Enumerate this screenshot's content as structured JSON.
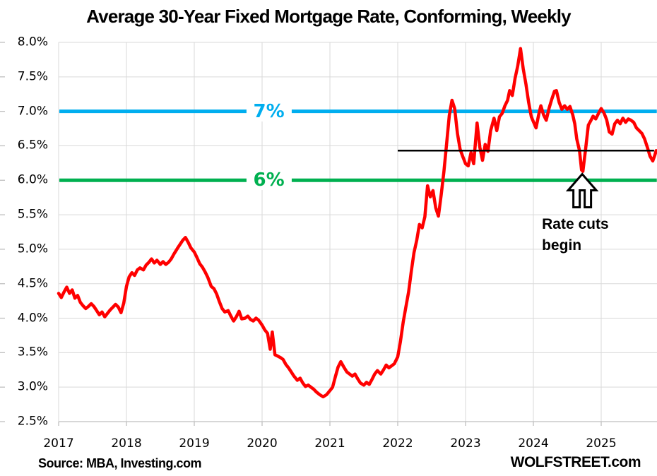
{
  "title": "Average 30-Year Fixed Mortgage Rate, Conforming, Weekly",
  "footer": {
    "source": "Source: MBA, Investing.com",
    "brand": "WOLFSTREET.com"
  },
  "colors": {
    "series_red": "#FF0000",
    "ref_blue": "#00AEEF",
    "ref_green": "#00B050",
    "ref_black": "#000000",
    "grid": "#D9D9D9",
    "axis": "#BFBFBF",
    "text": "#000000"
  },
  "chart_data": {
    "type": "line",
    "title": "Average 30-Year Fixed Mortgage Rate, Conforming, Weekly",
    "xlabel": "",
    "ylabel": "",
    "grid": true,
    "ylim": [
      2.5,
      8.0
    ],
    "xlim": [
      2017.0,
      2025.82
    ],
    "y_ticks": [
      {
        "label": "8.0%",
        "value": 8.0
      },
      {
        "label": "7.5%",
        "value": 7.5
      },
      {
        "label": "7.0%",
        "value": 7.0
      },
      {
        "label": "6.5%",
        "value": 6.5
      },
      {
        "label": "6.0%",
        "value": 6.0
      },
      {
        "label": "5.5%",
        "value": 5.5
      },
      {
        "label": "5.0%",
        "value": 5.0
      },
      {
        "label": "4.5%",
        "value": 4.5
      },
      {
        "label": "4.0%",
        "value": 4.0
      },
      {
        "label": "3.5%",
        "value": 3.5
      },
      {
        "label": "3.0%",
        "value": 3.0
      },
      {
        "label": "2.5%",
        "value": 2.5
      }
    ],
    "x_ticks": [
      {
        "label": "2017",
        "value": 2017
      },
      {
        "label": "2018",
        "value": 2018
      },
      {
        "label": "2019",
        "value": 2019
      },
      {
        "label": "2020",
        "value": 2020
      },
      {
        "label": "2021",
        "value": 2021
      },
      {
        "label": "2022",
        "value": 2022
      },
      {
        "label": "2023",
        "value": 2023
      },
      {
        "label": "2024",
        "value": 2024
      },
      {
        "label": "2025",
        "value": 2025
      }
    ],
    "reference_lines": [
      {
        "label": "7%",
        "value": 7.0,
        "color": "#00AEEF",
        "x_start": 2017.0,
        "x_end": 2025.82,
        "label_x": 2020.1,
        "width": 5
      },
      {
        "label": "6%",
        "value": 6.0,
        "color": "#00B050",
        "x_start": 2017.0,
        "x_end": 2025.82,
        "label_x": 2020.1,
        "width": 5
      },
      {
        "label": "",
        "value": 6.43,
        "color": "#000000",
        "x_start": 2022.0,
        "x_end": 2025.78,
        "label_x": null,
        "width": 2.5
      }
    ],
    "annotation": {
      "text": "Rate cuts begin",
      "arrow_x": 2024.72,
      "arrow_y": 6.1
    },
    "series": [
      {
        "name": "30-year fixed mortgage rate",
        "color": "#FF0000",
        "points": [
          [
            2017.0,
            4.36
          ],
          [
            2017.04,
            4.3
          ],
          [
            2017.08,
            4.38
          ],
          [
            2017.12,
            4.45
          ],
          [
            2017.16,
            4.36
          ],
          [
            2017.2,
            4.41
          ],
          [
            2017.24,
            4.29
          ],
          [
            2017.28,
            4.33
          ],
          [
            2017.32,
            4.23
          ],
          [
            2017.36,
            4.18
          ],
          [
            2017.4,
            4.14
          ],
          [
            2017.44,
            4.17
          ],
          [
            2017.48,
            4.21
          ],
          [
            2017.52,
            4.17
          ],
          [
            2017.56,
            4.11
          ],
          [
            2017.6,
            4.05
          ],
          [
            2017.64,
            4.09
          ],
          [
            2017.68,
            4.02
          ],
          [
            2017.72,
            4.07
          ],
          [
            2017.76,
            4.12
          ],
          [
            2017.8,
            4.16
          ],
          [
            2017.84,
            4.2
          ],
          [
            2017.88,
            4.16
          ],
          [
            2017.92,
            4.08
          ],
          [
            2017.96,
            4.22
          ],
          [
            2018.0,
            4.46
          ],
          [
            2018.04,
            4.6
          ],
          [
            2018.08,
            4.66
          ],
          [
            2018.12,
            4.62
          ],
          [
            2018.16,
            4.7
          ],
          [
            2018.2,
            4.73
          ],
          [
            2018.25,
            4.7
          ],
          [
            2018.29,
            4.77
          ],
          [
            2018.33,
            4.81
          ],
          [
            2018.37,
            4.86
          ],
          [
            2018.41,
            4.8
          ],
          [
            2018.45,
            4.84
          ],
          [
            2018.5,
            4.78
          ],
          [
            2018.54,
            4.82
          ],
          [
            2018.58,
            4.78
          ],
          [
            2018.62,
            4.81
          ],
          [
            2018.66,
            4.86
          ],
          [
            2018.7,
            4.93
          ],
          [
            2018.75,
            5.01
          ],
          [
            2018.79,
            5.07
          ],
          [
            2018.83,
            5.13
          ],
          [
            2018.87,
            5.17
          ],
          [
            2018.91,
            5.1
          ],
          [
            2018.95,
            5.02
          ],
          [
            2019.0,
            4.96
          ],
          [
            2019.04,
            4.88
          ],
          [
            2019.08,
            4.79
          ],
          [
            2019.12,
            4.74
          ],
          [
            2019.16,
            4.67
          ],
          [
            2019.2,
            4.59
          ],
          [
            2019.25,
            4.46
          ],
          [
            2019.29,
            4.43
          ],
          [
            2019.33,
            4.35
          ],
          [
            2019.37,
            4.24
          ],
          [
            2019.41,
            4.14
          ],
          [
            2019.45,
            4.09
          ],
          [
            2019.5,
            4.11
          ],
          [
            2019.54,
            4.03
          ],
          [
            2019.58,
            3.96
          ],
          [
            2019.62,
            4.02
          ],
          [
            2019.66,
            4.1
          ],
          [
            2019.7,
            3.99
          ],
          [
            2019.75,
            4.0
          ],
          [
            2019.79,
            4.03
          ],
          [
            2019.83,
            3.98
          ],
          [
            2019.87,
            3.96
          ],
          [
            2019.91,
            4.0
          ],
          [
            2019.95,
            3.97
          ],
          [
            2020.0,
            3.9
          ],
          [
            2020.04,
            3.83
          ],
          [
            2020.08,
            3.78
          ],
          [
            2020.12,
            3.55
          ],
          [
            2020.15,
            3.8
          ],
          [
            2020.19,
            3.47
          ],
          [
            2020.23,
            3.45
          ],
          [
            2020.27,
            3.43
          ],
          [
            2020.31,
            3.4
          ],
          [
            2020.35,
            3.33
          ],
          [
            2020.39,
            3.28
          ],
          [
            2020.43,
            3.22
          ],
          [
            2020.47,
            3.16
          ],
          [
            2020.52,
            3.1
          ],
          [
            2020.56,
            3.13
          ],
          [
            2020.6,
            3.06
          ],
          [
            2020.64,
            3.01
          ],
          [
            2020.68,
            3.03
          ],
          [
            2020.72,
            3.0
          ],
          [
            2020.76,
            2.97
          ],
          [
            2020.8,
            2.93
          ],
          [
            2020.85,
            2.89
          ],
          [
            2020.9,
            2.86
          ],
          [
            2020.95,
            2.89
          ],
          [
            2021.0,
            2.95
          ],
          [
            2021.04,
            3.0
          ],
          [
            2021.08,
            3.15
          ],
          [
            2021.12,
            3.29
          ],
          [
            2021.16,
            3.37
          ],
          [
            2021.2,
            3.3
          ],
          [
            2021.25,
            3.22
          ],
          [
            2021.29,
            3.19
          ],
          [
            2021.33,
            3.16
          ],
          [
            2021.37,
            3.19
          ],
          [
            2021.41,
            3.12
          ],
          [
            2021.45,
            3.06
          ],
          [
            2021.5,
            3.03
          ],
          [
            2021.54,
            3.07
          ],
          [
            2021.58,
            3.04
          ],
          [
            2021.62,
            3.11
          ],
          [
            2021.66,
            3.19
          ],
          [
            2021.7,
            3.24
          ],
          [
            2021.75,
            3.19
          ],
          [
            2021.79,
            3.25
          ],
          [
            2021.83,
            3.32
          ],
          [
            2021.87,
            3.28
          ],
          [
            2021.91,
            3.31
          ],
          [
            2021.95,
            3.34
          ],
          [
            2022.0,
            3.44
          ],
          [
            2022.04,
            3.66
          ],
          [
            2022.08,
            3.94
          ],
          [
            2022.12,
            4.16
          ],
          [
            2022.16,
            4.38
          ],
          [
            2022.2,
            4.68
          ],
          [
            2022.24,
            4.95
          ],
          [
            2022.28,
            5.13
          ],
          [
            2022.32,
            5.36
          ],
          [
            2022.36,
            5.31
          ],
          [
            2022.4,
            5.47
          ],
          [
            2022.44,
            5.92
          ],
          [
            2022.48,
            5.76
          ],
          [
            2022.52,
            5.85
          ],
          [
            2022.56,
            5.6
          ],
          [
            2022.6,
            5.48
          ],
          [
            2022.64,
            5.78
          ],
          [
            2022.68,
            6.12
          ],
          [
            2022.72,
            6.52
          ],
          [
            2022.76,
            6.94
          ],
          [
            2022.8,
            7.16
          ],
          [
            2022.84,
            7.04
          ],
          [
            2022.88,
            6.68
          ],
          [
            2022.92,
            6.45
          ],
          [
            2022.96,
            6.34
          ],
          [
            2023.0,
            6.24
          ],
          [
            2023.04,
            6.21
          ],
          [
            2023.08,
            6.4
          ],
          [
            2023.12,
            6.24
          ],
          [
            2023.17,
            6.83
          ],
          [
            2023.21,
            6.48
          ],
          [
            2023.25,
            6.29
          ],
          [
            2023.29,
            6.52
          ],
          [
            2023.33,
            6.42
          ],
          [
            2023.37,
            6.72
          ],
          [
            2023.42,
            6.9
          ],
          [
            2023.46,
            6.72
          ],
          [
            2023.5,
            6.92
          ],
          [
            2023.54,
            6.97
          ],
          [
            2023.58,
            7.08
          ],
          [
            2023.62,
            7.16
          ],
          [
            2023.65,
            7.3
          ],
          [
            2023.69,
            7.23
          ],
          [
            2023.73,
            7.48
          ],
          [
            2023.77,
            7.66
          ],
          [
            2023.81,
            7.91
          ],
          [
            2023.85,
            7.62
          ],
          [
            2023.89,
            7.4
          ],
          [
            2023.93,
            7.13
          ],
          [
            2023.97,
            6.92
          ],
          [
            2024.0,
            6.85
          ],
          [
            2024.04,
            6.76
          ],
          [
            2024.08,
            6.96
          ],
          [
            2024.11,
            7.08
          ],
          [
            2024.15,
            6.95
          ],
          [
            2024.19,
            6.87
          ],
          [
            2024.23,
            7.04
          ],
          [
            2024.27,
            7.17
          ],
          [
            2024.31,
            7.29
          ],
          [
            2024.34,
            7.3
          ],
          [
            2024.38,
            7.13
          ],
          [
            2024.42,
            7.03
          ],
          [
            2024.46,
            7.08
          ],
          [
            2024.5,
            7.03
          ],
          [
            2024.54,
            7.07
          ],
          [
            2024.58,
            6.95
          ],
          [
            2024.61,
            6.82
          ],
          [
            2024.64,
            6.6
          ],
          [
            2024.68,
            6.43
          ],
          [
            2024.71,
            6.15
          ],
          [
            2024.73,
            6.13
          ],
          [
            2024.77,
            6.45
          ],
          [
            2024.81,
            6.8
          ],
          [
            2024.85,
            6.87
          ],
          [
            2024.88,
            6.93
          ],
          [
            2024.92,
            6.89
          ],
          [
            2024.96,
            6.97
          ],
          [
            2025.0,
            7.04
          ],
          [
            2025.04,
            6.98
          ],
          [
            2025.08,
            6.88
          ],
          [
            2025.12,
            6.7
          ],
          [
            2025.16,
            6.67
          ],
          [
            2025.2,
            6.82
          ],
          [
            2025.24,
            6.87
          ],
          [
            2025.28,
            6.82
          ],
          [
            2025.32,
            6.9
          ],
          [
            2025.36,
            6.84
          ],
          [
            2025.4,
            6.89
          ],
          [
            2025.44,
            6.87
          ],
          [
            2025.48,
            6.84
          ],
          [
            2025.52,
            6.76
          ],
          [
            2025.56,
            6.72
          ],
          [
            2025.6,
            6.68
          ],
          [
            2025.64,
            6.6
          ],
          [
            2025.68,
            6.48
          ],
          [
            2025.72,
            6.35
          ],
          [
            2025.76,
            6.28
          ],
          [
            2025.79,
            6.36
          ],
          [
            2025.81,
            6.43
          ]
        ]
      }
    ]
  }
}
